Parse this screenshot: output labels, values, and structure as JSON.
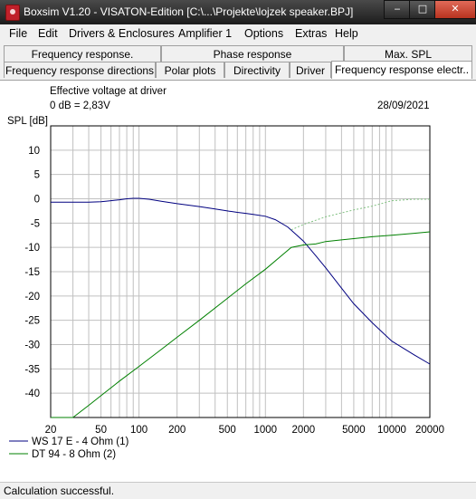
{
  "window": {
    "title": "Boxsim V1.20 - VISATON-Edition [C:\\...\\Projekte\\lojzek speaker.BPJ]",
    "minimize": "‒",
    "maximize": "□",
    "close": "✕"
  },
  "menu": [
    "File",
    "Edit",
    "Drivers & Enclosures",
    "Amplifier 1",
    "Options",
    "Extras",
    "Help"
  ],
  "tabs_row1": [
    "Frequency response.",
    "Phase response",
    "Max. SPL"
  ],
  "tabs_row2": [
    "Frequency response directions",
    "Polar plots",
    "Directivity",
    "Driver",
    "Frequency response electr.."
  ],
  "active_tab": "Frequency response electr..",
  "plot_header": {
    "line1": "Effective voltage at driver",
    "line2": "0 dB = 2,83V",
    "date": "28/09/2021"
  },
  "status": "Calculation successful.",
  "colors": {
    "series1": "#000080",
    "series2": "#008000",
    "grid": "#c0c0c0"
  },
  "chart_data": {
    "type": "line",
    "ylabel": "SPL [dB]",
    "xscale": "log",
    "xlim": [
      20,
      20000
    ],
    "ylim": [
      -45,
      15
    ],
    "xticks": [
      20,
      50,
      100,
      200,
      500,
      1000,
      2000,
      5000,
      10000,
      20000
    ],
    "yticks": [
      10,
      5,
      0,
      -5,
      -10,
      -15,
      -20,
      -25,
      -30,
      -35,
      -40
    ],
    "grid": true,
    "legend_position": "bottom-left",
    "series": [
      {
        "name": "WS 17 E - 4 Ohm  (1)",
        "color": "#000080",
        "x": [
          20,
          30,
          40,
          50,
          60,
          70,
          80,
          90,
          100,
          120,
          150,
          200,
          300,
          400,
          500,
          600,
          700,
          800,
          1000,
          1200,
          1500,
          2000,
          2500,
          3000,
          4000,
          5000,
          7000,
          10000,
          15000,
          20000
        ],
        "y": [
          -0.7,
          -0.7,
          -0.7,
          -0.6,
          -0.4,
          -0.2,
          0,
          0.1,
          0.1,
          -0.1,
          -0.5,
          -1.0,
          -1.6,
          -2.1,
          -2.5,
          -2.8,
          -3.0,
          -3.2,
          -3.6,
          -4.3,
          -5.8,
          -8.7,
          -11.7,
          -14.2,
          -18.4,
          -21.6,
          -25.5,
          -29.3,
          -32.1,
          -34.0
        ]
      },
      {
        "name": "DT 94 - 8 Ohm (2)",
        "color": "#008000",
        "x": [
          20,
          30,
          40,
          50,
          70,
          100,
          150,
          200,
          300,
          500,
          700,
          1000,
          1300,
          1600,
          2000,
          2500,
          3000,
          5000,
          7000,
          10000,
          15000,
          20000
        ],
        "y": [
          -45,
          -45,
          -42.5,
          -40.5,
          -37.5,
          -34.5,
          -31.0,
          -28.5,
          -25.0,
          -20.5,
          -17.5,
          -14.5,
          -12.0,
          -10.0,
          -9.5,
          -9.3,
          -8.8,
          -8.2,
          -7.8,
          -7.5,
          -7.1,
          -6.8
        ]
      },
      {
        "name": "",
        "style": "dotted",
        "color": "#80c080",
        "x": [
          1600,
          2000,
          3000,
          5000,
          7000,
          10000,
          15000,
          20000
        ],
        "y": [
          -6.4,
          -5.3,
          -3.7,
          -2.3,
          -1.5,
          -0.4,
          -0.1,
          -0.1
        ]
      }
    ]
  }
}
